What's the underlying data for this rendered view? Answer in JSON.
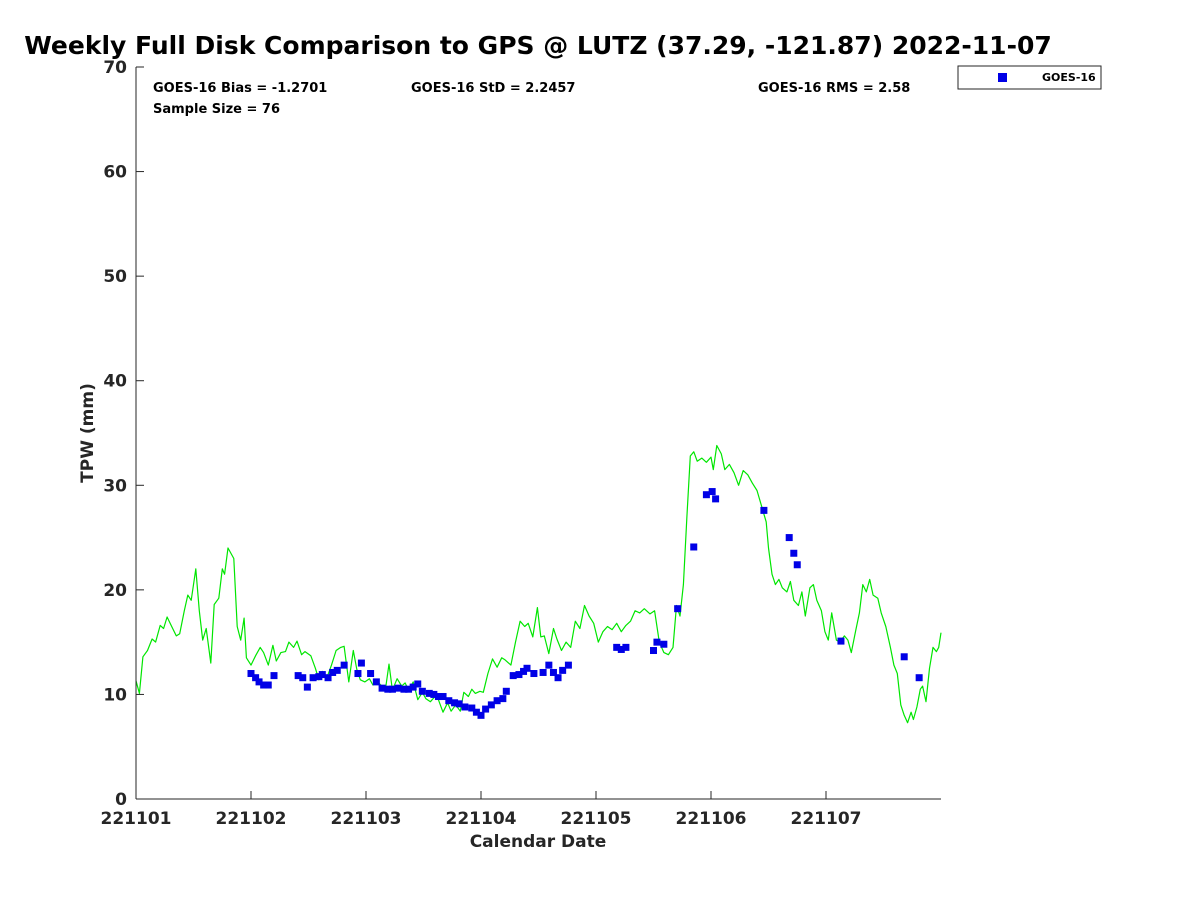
{
  "chart_data": {
    "type": "scatter",
    "title": "Weekly Full Disk Comparison to GPS @ LUTZ (37.29, -121.87) 2022-11-07",
    "xlabel": "Calendar Date",
    "ylabel": "TPW (mm)",
    "xlim": [
      0,
      7
    ],
    "ylim": [
      0,
      70
    ],
    "x_ticks": [
      {
        "x": 0,
        "label": "221101"
      },
      {
        "x": 1,
        "label": "221102"
      },
      {
        "x": 2,
        "label": "221103"
      },
      {
        "x": 3,
        "label": "221104"
      },
      {
        "x": 4,
        "label": "221105"
      },
      {
        "x": 5,
        "label": "221106"
      },
      {
        "x": 6,
        "label": "221107"
      }
    ],
    "y_ticks": [
      0,
      10,
      20,
      30,
      40,
      50,
      60,
      70
    ],
    "grid": false,
    "legend_position": "top-right, outside plot",
    "stats": {
      "bias": "GOES-16 Bias = -1.2701",
      "std": "GOES-16 StD = 2.2457",
      "rms": "GOES-16 RMS = 2.58",
      "sample": "Sample Size = 76"
    },
    "series": [
      {
        "name": "GOES-16",
        "kind": "scatter",
        "marker": "square",
        "color": "#0000e6",
        "points": [
          [
            1.0,
            12.0
          ],
          [
            1.04,
            11.6
          ],
          [
            1.07,
            11.2
          ],
          [
            1.11,
            10.9
          ],
          [
            1.15,
            10.9
          ],
          [
            1.2,
            11.8
          ],
          [
            1.41,
            11.8
          ],
          [
            1.45,
            11.6
          ],
          [
            1.49,
            10.7
          ],
          [
            1.54,
            11.6
          ],
          [
            1.59,
            11.7
          ],
          [
            1.62,
            11.9
          ],
          [
            1.67,
            11.6
          ],
          [
            1.71,
            12.1
          ],
          [
            1.75,
            12.3
          ],
          [
            1.81,
            12.8
          ],
          [
            1.93,
            12.0
          ],
          [
            1.96,
            13.0
          ],
          [
            2.04,
            12.0
          ],
          [
            2.09,
            11.2
          ],
          [
            2.14,
            10.6
          ],
          [
            2.19,
            10.5
          ],
          [
            2.23,
            10.5
          ],
          [
            2.28,
            10.6
          ],
          [
            2.33,
            10.5
          ],
          [
            2.37,
            10.5
          ],
          [
            2.41,
            10.7
          ],
          [
            2.45,
            11.0
          ],
          [
            2.49,
            10.3
          ],
          [
            2.55,
            10.1
          ],
          [
            2.59,
            10.0
          ],
          [
            2.63,
            9.8
          ],
          [
            2.67,
            9.8
          ],
          [
            2.72,
            9.4
          ],
          [
            2.77,
            9.2
          ],
          [
            2.81,
            9.1
          ],
          [
            2.86,
            8.8
          ],
          [
            2.92,
            8.7
          ],
          [
            2.96,
            8.3
          ],
          [
            3.0,
            8.0
          ],
          [
            3.04,
            8.6
          ],
          [
            3.09,
            9.0
          ],
          [
            3.14,
            9.4
          ],
          [
            3.19,
            9.6
          ],
          [
            3.22,
            10.3
          ],
          [
            3.28,
            11.8
          ],
          [
            3.33,
            11.9
          ],
          [
            3.37,
            12.2
          ],
          [
            3.4,
            12.5
          ],
          [
            3.46,
            12.0
          ],
          [
            3.54,
            12.1
          ],
          [
            3.59,
            12.8
          ],
          [
            3.63,
            12.1
          ],
          [
            3.67,
            11.6
          ],
          [
            3.71,
            12.3
          ],
          [
            3.76,
            12.8
          ],
          [
            4.18,
            14.5
          ],
          [
            4.22,
            14.3
          ],
          [
            4.26,
            14.5
          ],
          [
            4.5,
            14.2
          ],
          [
            4.53,
            15.0
          ],
          [
            4.59,
            14.8
          ],
          [
            4.71,
            18.2
          ],
          [
            4.85,
            24.1
          ],
          [
            4.96,
            29.1
          ],
          [
            5.01,
            29.4
          ],
          [
            5.04,
            28.7
          ],
          [
            5.46,
            27.6
          ],
          [
            5.68,
            25.0
          ],
          [
            5.72,
            23.5
          ],
          [
            5.75,
            22.4
          ],
          [
            6.13,
            15.1
          ],
          [
            6.68,
            13.6
          ],
          [
            6.81,
            11.6
          ]
        ]
      },
      {
        "name": "GPS",
        "kind": "line",
        "color": "#00e600",
        "points": [
          [
            0.0,
            11.3
          ],
          [
            0.03,
            10.1
          ],
          [
            0.06,
            13.6
          ],
          [
            0.1,
            14.2
          ],
          [
            0.14,
            15.3
          ],
          [
            0.17,
            15.0
          ],
          [
            0.21,
            16.6
          ],
          [
            0.24,
            16.3
          ],
          [
            0.27,
            17.4
          ],
          [
            0.31,
            16.5
          ],
          [
            0.35,
            15.6
          ],
          [
            0.38,
            15.8
          ],
          [
            0.42,
            18.0
          ],
          [
            0.45,
            19.5
          ],
          [
            0.48,
            19.0
          ],
          [
            0.52,
            22.0
          ],
          [
            0.55,
            18.0
          ],
          [
            0.58,
            15.2
          ],
          [
            0.61,
            16.3
          ],
          [
            0.65,
            13.0
          ],
          [
            0.68,
            18.6
          ],
          [
            0.72,
            19.2
          ],
          [
            0.75,
            22.0
          ],
          [
            0.77,
            21.5
          ],
          [
            0.8,
            24.0
          ],
          [
            0.85,
            23.0
          ],
          [
            0.88,
            16.5
          ],
          [
            0.91,
            15.2
          ],
          [
            0.94,
            17.3
          ],
          [
            0.96,
            13.5
          ],
          [
            1.0,
            12.8
          ],
          [
            1.04,
            13.7
          ],
          [
            1.08,
            14.5
          ],
          [
            1.11,
            14.0
          ],
          [
            1.15,
            12.8
          ],
          [
            1.19,
            14.7
          ],
          [
            1.22,
            13.2
          ],
          [
            1.26,
            14.0
          ],
          [
            1.3,
            14.1
          ],
          [
            1.33,
            15.0
          ],
          [
            1.37,
            14.5
          ],
          [
            1.4,
            15.1
          ],
          [
            1.44,
            13.8
          ],
          [
            1.47,
            14.1
          ],
          [
            1.52,
            13.7
          ],
          [
            1.56,
            12.5
          ],
          [
            1.59,
            11.4
          ],
          [
            1.62,
            12.2
          ],
          [
            1.66,
            11.6
          ],
          [
            1.7,
            12.8
          ],
          [
            1.74,
            14.2
          ],
          [
            1.78,
            14.5
          ],
          [
            1.81,
            14.6
          ],
          [
            1.85,
            11.2
          ],
          [
            1.89,
            14.2
          ],
          [
            1.92,
            12.4
          ],
          [
            1.95,
            11.4
          ],
          [
            1.99,
            11.2
          ],
          [
            2.03,
            11.5
          ],
          [
            2.06,
            10.9
          ],
          [
            2.1,
            11.2
          ],
          [
            2.14,
            10.8
          ],
          [
            2.17,
            10.6
          ],
          [
            2.2,
            12.9
          ],
          [
            2.23,
            10.4
          ],
          [
            2.27,
            11.5
          ],
          [
            2.31,
            10.8
          ],
          [
            2.34,
            11.1
          ],
          [
            2.37,
            10.4
          ],
          [
            2.41,
            11.2
          ],
          [
            2.45,
            9.5
          ],
          [
            2.49,
            10.2
          ],
          [
            2.52,
            9.6
          ],
          [
            2.56,
            9.3
          ],
          [
            2.6,
            9.8
          ],
          [
            2.63,
            9.5
          ],
          [
            2.67,
            8.3
          ],
          [
            2.71,
            9.2
          ],
          [
            2.74,
            8.4
          ],
          [
            2.78,
            9.0
          ],
          [
            2.82,
            8.4
          ],
          [
            2.85,
            10.2
          ],
          [
            2.89,
            9.8
          ],
          [
            2.92,
            10.5
          ],
          [
            2.95,
            10.1
          ],
          [
            2.99,
            10.3
          ],
          [
            3.02,
            10.2
          ],
          [
            3.06,
            12.0
          ],
          [
            3.1,
            13.4
          ],
          [
            3.14,
            12.6
          ],
          [
            3.18,
            13.5
          ],
          [
            3.21,
            13.3
          ],
          [
            3.26,
            12.8
          ],
          [
            3.3,
            15.0
          ],
          [
            3.34,
            17.0
          ],
          [
            3.38,
            16.5
          ],
          [
            3.41,
            16.8
          ],
          [
            3.45,
            15.5
          ],
          [
            3.49,
            18.3
          ],
          [
            3.52,
            15.5
          ],
          [
            3.55,
            15.6
          ],
          [
            3.59,
            13.9
          ],
          [
            3.63,
            16.3
          ],
          [
            3.66,
            15.3
          ],
          [
            3.7,
            14.2
          ],
          [
            3.74,
            15.0
          ],
          [
            3.78,
            14.5
          ],
          [
            3.82,
            17.0
          ],
          [
            3.86,
            16.3
          ],
          [
            3.9,
            18.5
          ],
          [
            3.94,
            17.5
          ],
          [
            3.98,
            16.8
          ],
          [
            4.02,
            15.0
          ],
          [
            4.06,
            16.0
          ],
          [
            4.1,
            16.5
          ],
          [
            4.14,
            16.2
          ],
          [
            4.18,
            16.8
          ],
          [
            4.22,
            16.0
          ],
          [
            4.26,
            16.6
          ],
          [
            4.3,
            17.0
          ],
          [
            4.34,
            18.0
          ],
          [
            4.38,
            17.8
          ],
          [
            4.42,
            18.2
          ],
          [
            4.47,
            17.7
          ],
          [
            4.51,
            18.0
          ],
          [
            4.55,
            15.0
          ],
          [
            4.59,
            14.0
          ],
          [
            4.63,
            13.8
          ],
          [
            4.67,
            14.5
          ],
          [
            4.7,
            18.5
          ],
          [
            4.73,
            17.5
          ],
          [
            4.76,
            20.5
          ],
          [
            4.79,
            27.0
          ],
          [
            4.82,
            32.8
          ],
          [
            4.85,
            33.2
          ],
          [
            4.88,
            32.3
          ],
          [
            4.92,
            32.6
          ],
          [
            4.96,
            32.2
          ],
          [
            5.0,
            32.7
          ],
          [
            5.02,
            31.5
          ],
          [
            5.05,
            33.8
          ],
          [
            5.09,
            33.0
          ],
          [
            5.12,
            31.5
          ],
          [
            5.16,
            32.0
          ],
          [
            5.2,
            31.2
          ],
          [
            5.24,
            30.0
          ],
          [
            5.28,
            31.4
          ],
          [
            5.32,
            31.0
          ],
          [
            5.36,
            30.2
          ],
          [
            5.4,
            29.5
          ],
          [
            5.44,
            28.0
          ],
          [
            5.48,
            26.5
          ],
          [
            5.5,
            24.0
          ],
          [
            5.53,
            21.5
          ],
          [
            5.56,
            20.5
          ],
          [
            5.59,
            21.0
          ],
          [
            5.62,
            20.2
          ],
          [
            5.66,
            19.8
          ],
          [
            5.69,
            20.8
          ],
          [
            5.72,
            19.0
          ],
          [
            5.76,
            18.5
          ],
          [
            5.79,
            19.8
          ],
          [
            5.82,
            17.5
          ],
          [
            5.86,
            20.2
          ],
          [
            5.89,
            20.5
          ],
          [
            5.92,
            19.0
          ],
          [
            5.96,
            18.0
          ],
          [
            5.99,
            16.0
          ],
          [
            6.02,
            15.2
          ],
          [
            6.05,
            17.8
          ],
          [
            6.09,
            15.2
          ],
          [
            6.12,
            15.0
          ],
          [
            6.16,
            15.6
          ],
          [
            6.19,
            15.2
          ],
          [
            6.22,
            14.0
          ],
          [
            6.26,
            16.2
          ],
          [
            6.29,
            17.8
          ],
          [
            6.32,
            20.5
          ],
          [
            6.35,
            19.8
          ],
          [
            6.38,
            21.0
          ],
          [
            6.41,
            19.5
          ],
          [
            6.45,
            19.2
          ],
          [
            6.48,
            17.8
          ],
          [
            6.52,
            16.5
          ],
          [
            6.56,
            14.5
          ],
          [
            6.59,
            12.8
          ],
          [
            6.62,
            12.0
          ],
          [
            6.65,
            9.0
          ],
          [
            6.68,
            8.0
          ],
          [
            6.71,
            7.3
          ],
          [
            6.74,
            8.3
          ],
          [
            6.76,
            7.6
          ],
          [
            6.79,
            8.8
          ],
          [
            6.82,
            10.5
          ],
          [
            6.84,
            10.8
          ],
          [
            6.87,
            9.3
          ],
          [
            6.9,
            12.5
          ],
          [
            6.93,
            14.5
          ],
          [
            6.96,
            14.1
          ],
          [
            6.98,
            14.5
          ],
          [
            7.0,
            15.9
          ]
        ]
      }
    ]
  }
}
